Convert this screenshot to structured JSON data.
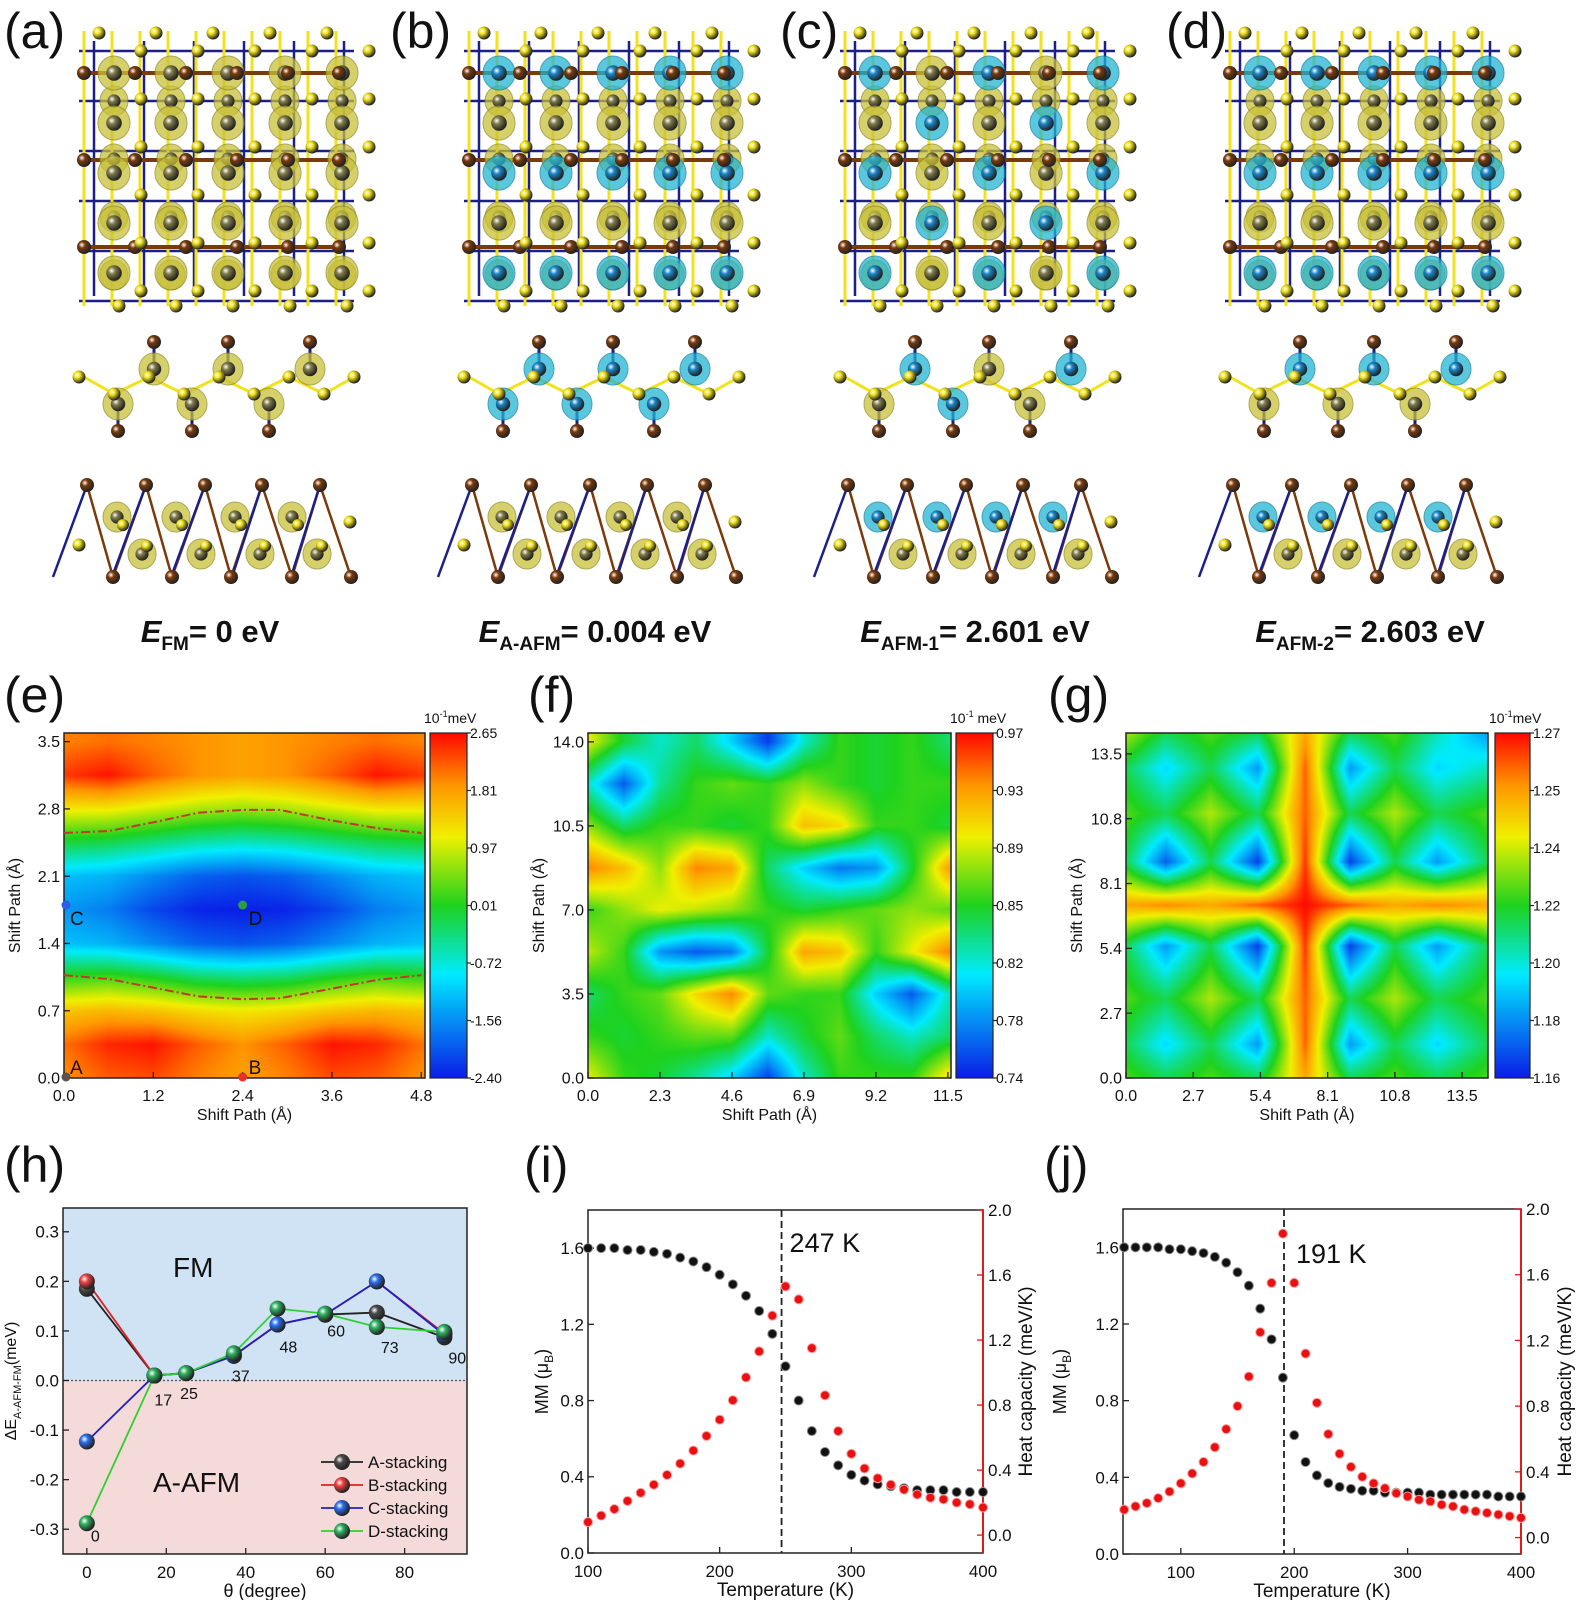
{
  "panel_labels": [
    "(a)",
    "(b)",
    "(c)",
    "(d)",
    "(e)",
    "(f)",
    "(g)",
    "(h)",
    "(i)",
    "(j)"
  ],
  "structures": {
    "colors": {
      "sulfur": "#f2e21c",
      "brown_atom": "#7a3a0c",
      "bond": "#1b1f8a",
      "spin_up": "#c8c03a",
      "spin_down": "#22b4d2"
    },
    "energies": [
      {
        "symbol": "E",
        "sub": "FM",
        "value": "= 0 eV"
      },
      {
        "symbol": "E",
        "sub": "A-AFM",
        "value": "= 0.004 eV"
      },
      {
        "symbol": "E",
        "sub": "AFM-1",
        "value": "= 2.601 eV"
      },
      {
        "symbol": "E",
        "sub": "AFM-2",
        "value": "= 2.603 eV"
      }
    ]
  },
  "chart_data": [
    {
      "type": "heatmap",
      "xlabel": "Shift Path (Å)",
      "ylabel": "Shift Path (Å)",
      "xlim": [
        0,
        4.85
      ],
      "ylim": [
        0,
        3.59
      ],
      "xticks": [
        "0.0",
        "1.2",
        "2.4",
        "3.6",
        "4.8"
      ],
      "yticks": [
        "0.0",
        "0.7",
        "1.4",
        "2.1",
        "2.8",
        "3.5"
      ],
      "colorbar": {
        "unit_base": "10",
        "unit_exp": "-1",
        "unit": "meV",
        "ticks": [
          "2.65",
          "1.81",
          "0.97",
          "0.01",
          "-0.72",
          "-1.56",
          "-2.40"
        ],
        "zlim": [
          -2.4,
          2.65
        ]
      },
      "x_grid": [
        0,
        0.6,
        1.2,
        1.8,
        2.4,
        3.0,
        3.6,
        4.2,
        4.8
      ],
      "y_grid": [
        0,
        0.35,
        0.7,
        1.05,
        1.4,
        1.75,
        2.1,
        2.45,
        2.8,
        3.15,
        3.5
      ],
      "z": [
        [
          1.9,
          2.2,
          2.3,
          2.0,
          1.8,
          2.0,
          2.3,
          2.2,
          1.9
        ],
        [
          2.1,
          2.5,
          2.6,
          2.2,
          1.9,
          2.2,
          2.6,
          2.5,
          2.1
        ],
        [
          1.5,
          1.6,
          1.5,
          1.3,
          1.2,
          1.3,
          1.5,
          1.6,
          1.5
        ],
        [
          0.2,
          0.3,
          0.1,
          -0.2,
          -0.3,
          -0.2,
          0.1,
          0.3,
          0.2
        ],
        [
          -1.2,
          -1.3,
          -1.6,
          -1.9,
          -2.0,
          -1.9,
          -1.6,
          -1.3,
          -1.2
        ],
        [
          -1.5,
          -1.7,
          -2.1,
          -2.35,
          -2.4,
          -2.35,
          -2.1,
          -1.7,
          -1.5
        ],
        [
          -1.2,
          -1.3,
          -1.6,
          -1.9,
          -2.0,
          -1.9,
          -1.6,
          -1.3,
          -1.2
        ],
        [
          0.0,
          -0.1,
          -0.3,
          -0.5,
          -0.6,
          -0.5,
          -0.3,
          -0.1,
          0.0
        ],
        [
          1.2,
          1.2,
          1.0,
          0.8,
          0.7,
          0.8,
          1.0,
          1.2,
          1.2
        ],
        [
          2.4,
          2.6,
          2.2,
          1.9,
          1.8,
          1.9,
          2.2,
          2.6,
          2.4
        ],
        [
          2.0,
          2.1,
          2.0,
          1.9,
          1.8,
          1.9,
          2.0,
          2.1,
          2.0
        ]
      ],
      "contours": [
        {
          "x": [
            0,
            0.6,
            1.2,
            1.8,
            2.4,
            2.9,
            3.6,
            4.2,
            4.8
          ],
          "y": [
            2.55,
            2.57,
            2.66,
            2.76,
            2.79,
            2.79,
            2.68,
            2.6,
            2.55
          ]
        },
        {
          "x": [
            0,
            0.6,
            1.2,
            1.8,
            2.4,
            2.9,
            3.6,
            4.2,
            4.8
          ],
          "y": [
            1.07,
            1.03,
            0.94,
            0.85,
            0.82,
            0.83,
            0.93,
            1.02,
            1.07
          ]
        }
      ],
      "contour_color": "#c0392b",
      "points": [
        {
          "label": "A",
          "x": 0,
          "y": 0,
          "color": "#555555"
        },
        {
          "label": "B",
          "x": 2.4,
          "y": 0,
          "color": "#e8302a"
        },
        {
          "label": "C",
          "x": 0,
          "y": 1.8,
          "color": "#2a5ee8"
        },
        {
          "label": "D",
          "x": 2.4,
          "y": 1.8,
          "color": "#2e9a4c"
        }
      ]
    },
    {
      "type": "heatmap",
      "xlabel": "Shift Path (Å)",
      "ylabel": "Shift Path (Å)",
      "xlim": [
        0,
        11.6
      ],
      "ylim": [
        0,
        14.37
      ],
      "xticks": [
        "0.0",
        "2.3",
        "4.6",
        "6.9",
        "9.2",
        "11.5"
      ],
      "yticks": [
        "0.0",
        "3.5",
        "7.0",
        "10.5",
        "14.0"
      ],
      "colorbar": {
        "unit_base": "10",
        "unit_exp": "-1",
        "unit": " meV",
        "ticks": [
          "0.97",
          "0.93",
          "0.89",
          "0.85",
          "0.82",
          "0.78",
          "0.74"
        ],
        "zlim": [
          0.74,
          0.97
        ]
      },
      "x_grid": [
        0,
        1.15,
        2.3,
        3.45,
        4.6,
        5.75,
        6.9,
        8.05,
        9.2,
        10.35,
        11.5
      ],
      "y_grid": [
        0,
        1.75,
        3.5,
        5.25,
        7,
        8.75,
        10.5,
        12.25,
        14
      ],
      "z": [
        [
          0.9,
          0.86,
          0.85,
          0.83,
          0.8,
          0.75,
          0.82,
          0.86,
          0.86,
          0.86,
          0.91
        ],
        [
          0.86,
          0.85,
          0.86,
          0.87,
          0.87,
          0.82,
          0.85,
          0.87,
          0.84,
          0.82,
          0.84
        ],
        [
          0.84,
          0.86,
          0.87,
          0.91,
          0.94,
          0.87,
          0.86,
          0.86,
          0.8,
          0.76,
          0.82
        ],
        [
          0.89,
          0.86,
          0.78,
          0.76,
          0.77,
          0.85,
          0.93,
          0.92,
          0.86,
          0.9,
          0.94
        ],
        [
          0.86,
          0.88,
          0.9,
          0.89,
          0.88,
          0.86,
          0.85,
          0.86,
          0.87,
          0.88,
          0.87
        ],
        [
          0.94,
          0.92,
          0.88,
          0.94,
          0.93,
          0.84,
          0.8,
          0.77,
          0.78,
          0.85,
          0.93
        ],
        [
          0.88,
          0.84,
          0.86,
          0.86,
          0.85,
          0.86,
          0.92,
          0.91,
          0.86,
          0.86,
          0.85
        ],
        [
          0.82,
          0.76,
          0.83,
          0.86,
          0.87,
          0.86,
          0.88,
          0.86,
          0.85,
          0.86,
          0.86
        ],
        [
          0.9,
          0.85,
          0.82,
          0.84,
          0.8,
          0.75,
          0.82,
          0.86,
          0.85,
          0.86,
          0.84
        ]
      ]
    },
    {
      "type": "heatmap",
      "xlabel": "Shift Path (Å)",
      "ylabel": "Shift Path (Å)",
      "xlim": [
        0,
        14.54
      ],
      "ylim": [
        0,
        14.37
      ],
      "xticks": [
        "0.0",
        "2.7",
        "5.4",
        "8.1",
        "10.8",
        "13.5"
      ],
      "yticks": [
        "0.0",
        "2.7",
        "5.4",
        "8.1",
        "10.8",
        "13.5"
      ],
      "colorbar": {
        "unit_base": "10",
        "unit_exp": "-1",
        "unit": "meV",
        "ticks": [
          "1.27",
          "1.25",
          "1.24",
          "1.22",
          "1.20",
          "1.18",
          "1.16"
        ],
        "zlim": [
          1.16,
          1.27
        ]
      },
      "x_grid": [
        0,
        1.6,
        3.4,
        5.3,
        7.2,
        9.0,
        10.8,
        12.5,
        14.54
      ],
      "y_grid": [
        0,
        1.4,
        3.3,
        5.5,
        7.2,
        9.0,
        11,
        12.9,
        14.37
      ],
      "z": [
        [
          1.22,
          1.21,
          1.22,
          1.21,
          1.25,
          1.21,
          1.22,
          1.21,
          1.22
        ],
        [
          1.21,
          1.19,
          1.21,
          1.18,
          1.26,
          1.18,
          1.21,
          1.19,
          1.21
        ],
        [
          1.22,
          1.21,
          1.23,
          1.21,
          1.26,
          1.21,
          1.23,
          1.21,
          1.22
        ],
        [
          1.21,
          1.18,
          1.21,
          1.165,
          1.265,
          1.165,
          1.21,
          1.18,
          1.21
        ],
        [
          1.25,
          1.255,
          1.25,
          1.26,
          1.27,
          1.26,
          1.25,
          1.255,
          1.25
        ],
        [
          1.21,
          1.17,
          1.21,
          1.165,
          1.265,
          1.165,
          1.21,
          1.18,
          1.21
        ],
        [
          1.22,
          1.21,
          1.23,
          1.21,
          1.26,
          1.21,
          1.23,
          1.21,
          1.22
        ],
        [
          1.21,
          1.19,
          1.21,
          1.18,
          1.26,
          1.18,
          1.21,
          1.19,
          1.2
        ],
        [
          1.23,
          1.21,
          1.22,
          1.21,
          1.25,
          1.21,
          1.22,
          1.2,
          1.18
        ]
      ]
    },
    {
      "type": "line",
      "xlabel": "θ (degree)",
      "ylabel_main": "ΔE",
      "ylabel_sub": "A-AFM-FM",
      "ylabel_end": "(meV)",
      "xlim": [
        -6,
        95.7
      ],
      "ylim": [
        -0.35,
        0.348
      ],
      "xticks": [
        "0",
        "20",
        "40",
        "60",
        "80"
      ],
      "yticks": [
        "-0.3",
        "-0.2",
        "-0.1",
        "0.0",
        "0.1",
        "0.2",
        "0.3"
      ],
      "regions": [
        {
          "label": "FM",
          "color": "#cfe3f5"
        },
        {
          "label": "A-AFM",
          "color": "#f5dada"
        }
      ],
      "x": [
        0,
        17,
        25,
        37,
        48,
        60,
        73,
        90
      ],
      "point_labels": [
        "0",
        "17",
        "25",
        "37",
        "48",
        "60",
        "73",
        "90"
      ],
      "series": [
        {
          "name": "A-stacking",
          "color": "#222222",
          "marker": "#4a4a4a",
          "values": [
            0.185,
            0.01,
            0.015,
            0.05,
            0.113,
            0.133,
            0.137,
            0.087
          ]
        },
        {
          "name": "B-stacking",
          "color": "#e02020",
          "marker": "#f04040",
          "values": [
            0.2,
            0.01,
            0.015,
            0.05,
            0.113,
            0.133,
            0.2,
            0.095
          ]
        },
        {
          "name": "C-stacking",
          "color": "#2020c0",
          "marker": "#2a6ef0",
          "values": [
            -0.123,
            0.01,
            0.015,
            0.05,
            0.113,
            0.133,
            0.2,
            0.092
          ]
        },
        {
          "name": "D-stacking",
          "color": "#30d030",
          "marker": "#30b060",
          "values": [
            -0.288,
            0.01,
            0.015,
            0.055,
            0.145,
            0.135,
            0.108,
            0.098
          ]
        }
      ],
      "legend": "bottom-right"
    },
    {
      "type": "scatter",
      "xlabel": "Temperature (K)",
      "ylabel_main": "MM (μ",
      "ylabel_sub": "B",
      "ylabel_end": ")",
      "y2label": "Heat capacity (meV/K)",
      "xlim": [
        100,
        400
      ],
      "ylim": [
        0,
        1.8
      ],
      "y2lim": [
        -0.11,
        2.0
      ],
      "xticks": [
        "100",
        "200",
        "300",
        "400"
      ],
      "yticks": [
        "0.0",
        "0.4",
        "0.8",
        "1.2",
        "1.6"
      ],
      "y2ticks": [
        "0.0",
        "0.4",
        "0.8",
        "1.2",
        "1.6",
        "2.0"
      ],
      "annotation": "247 K",
      "tc": 247,
      "x": [
        100,
        110,
        120,
        130,
        140,
        150,
        160,
        170,
        180,
        190,
        200,
        210,
        220,
        230,
        240,
        250,
        260,
        270,
        280,
        290,
        300,
        310,
        320,
        330,
        340,
        350,
        360,
        370,
        380,
        390,
        400
      ],
      "series": [
        {
          "axis": "left",
          "color": "#111111",
          "values": [
            1.6,
            1.6,
            1.6,
            1.59,
            1.59,
            1.58,
            1.57,
            1.55,
            1.53,
            1.5,
            1.46,
            1.41,
            1.35,
            1.27,
            1.15,
            0.98,
            0.8,
            0.64,
            0.53,
            0.46,
            0.41,
            0.38,
            0.36,
            0.35,
            0.34,
            0.33,
            0.33,
            0.33,
            0.32,
            0.32,
            0.32
          ]
        },
        {
          "axis": "right",
          "color": "#e81010",
          "values": [
            0.08,
            0.12,
            0.16,
            0.21,
            0.26,
            0.31,
            0.37,
            0.44,
            0.52,
            0.61,
            0.71,
            0.83,
            0.97,
            1.13,
            1.35,
            1.53,
            1.45,
            1.15,
            0.86,
            0.64,
            0.5,
            0.41,
            0.35,
            0.31,
            0.28,
            0.25,
            0.23,
            0.22,
            0.2,
            0.19,
            0.17
          ]
        }
      ]
    },
    {
      "type": "scatter",
      "xlabel": "Temperature (K)",
      "ylabel_main": "MM (μ",
      "ylabel_sub": "B",
      "ylabel_end": ")",
      "y2label": "Heat capacity (meV/K)",
      "xlim": [
        49,
        400
      ],
      "ylim": [
        0,
        1.8
      ],
      "y2lim": [
        -0.1,
        2.0
      ],
      "xticks": [
        "100",
        "200",
        "300",
        "400"
      ],
      "yticks": [
        "0.0",
        "0.4",
        "0.8",
        "1.2",
        "1.6"
      ],
      "y2ticks": [
        "0.0",
        "0.4",
        "0.8",
        "1.2",
        "1.6",
        "2.0"
      ],
      "annotation": "191 K",
      "tc": 191,
      "x": [
        50,
        60,
        70,
        80,
        90,
        100,
        110,
        120,
        130,
        140,
        150,
        160,
        170,
        180,
        190,
        200,
        210,
        220,
        230,
        240,
        250,
        260,
        270,
        280,
        290,
        300,
        310,
        320,
        330,
        340,
        350,
        360,
        370,
        380,
        390,
        400
      ],
      "series": [
        {
          "axis": "left",
          "color": "#111111",
          "values": [
            1.6,
            1.6,
            1.6,
            1.6,
            1.59,
            1.59,
            1.58,
            1.57,
            1.55,
            1.52,
            1.47,
            1.4,
            1.28,
            1.12,
            0.92,
            0.62,
            0.48,
            0.41,
            0.37,
            0.35,
            0.34,
            0.33,
            0.33,
            0.32,
            0.32,
            0.32,
            0.32,
            0.31,
            0.31,
            0.31,
            0.31,
            0.31,
            0.31,
            0.3,
            0.3,
            0.3
          ]
        },
        {
          "axis": "right",
          "color": "#e81010",
          "values": [
            0.17,
            0.19,
            0.21,
            0.24,
            0.28,
            0.33,
            0.39,
            0.46,
            0.55,
            0.66,
            0.8,
            0.98,
            1.25,
            1.55,
            1.85,
            1.55,
            1.12,
            0.82,
            0.63,
            0.51,
            0.43,
            0.37,
            0.33,
            0.3,
            0.27,
            0.25,
            0.23,
            0.22,
            0.2,
            0.19,
            0.17,
            0.16,
            0.15,
            0.14,
            0.13,
            0.12
          ]
        }
      ]
    }
  ]
}
